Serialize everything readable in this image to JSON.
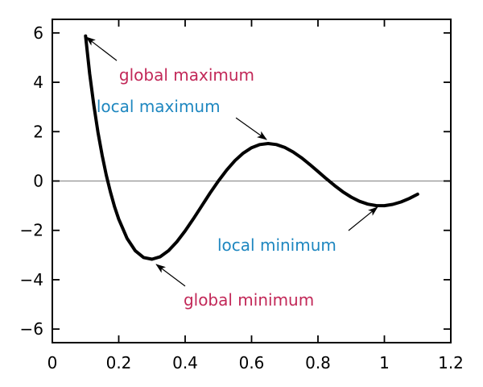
{
  "figure": {
    "background": "#ffffff",
    "axis_color": "#000000",
    "curve_color": "#000000",
    "zero_line_color": "#7f7f7f",
    "max_label_color": "#c22858",
    "min_label_color": "#1e87c0"
  },
  "chart_data": {
    "type": "line",
    "title": "",
    "xlabel": "",
    "ylabel": "",
    "xlim": [
      0,
      1.2
    ],
    "ylim": [
      -6.55,
      6.55
    ],
    "x_ticks": [
      0,
      0.2,
      0.4,
      0.6,
      0.8,
      1,
      1.2
    ],
    "x_tick_labels": [
      "0",
      "0.2",
      "0.4",
      "0.6",
      "0.8",
      "1",
      "1.2"
    ],
    "y_ticks": [
      -6,
      -4,
      -2,
      0,
      2,
      4,
      6
    ],
    "y_tick_labels": [
      "−6",
      "−4",
      "−2",
      "0",
      "2",
      "4",
      "6"
    ],
    "grid": false,
    "zero_line": true,
    "series": [
      {
        "color": "#000000",
        "x": [
          0.1,
          0.1125,
          0.125,
          0.1375,
          0.15,
          0.1625,
          0.175,
          0.1875,
          0.2,
          0.225,
          0.25,
          0.275,
          0.3,
          0.325,
          0.35,
          0.375,
          0.4,
          0.425,
          0.45,
          0.475,
          0.5,
          0.525,
          0.55,
          0.575,
          0.6,
          0.625,
          0.65,
          0.675,
          0.7,
          0.725,
          0.75,
          0.775,
          0.8,
          0.825,
          0.85,
          0.875,
          0.9,
          0.925,
          0.95,
          0.975,
          1.0,
          1.025,
          1.05,
          1.075,
          1.1
        ],
        "y": [
          5.8779,
          4.3433,
          3.0615,
          1.9741,
          1.0429,
          0.2416,
          -0.4483,
          -1.0405,
          -1.5451,
          -2.3222,
          -2.8284,
          -3.1005,
          -3.1702,
          -3.0674,
          -2.822,
          -2.4637,
          -2.0225,
          -1.528,
          -1.0089,
          -0.4915,
          0.0,
          0.4447,
          0.8254,
          1.1295,
          1.3484,
          1.4782,
          1.5195,
          1.4769,
          1.3587,
          1.1761,
          0.9428,
          0.6742,
          0.3863,
          0.0951,
          -0.184,
          -0.4374,
          -0.6531,
          -0.8221,
          -0.9379,
          -0.9973,
          -1.0,
          -0.9487,
          -0.8486,
          -0.7074,
          -0.5344
        ]
      }
    ],
    "key_points": {
      "global_maximum": [
        0.1,
        5.88
      ],
      "global_minimum": [
        0.3,
        -3.17
      ],
      "local_maximum": [
        0.65,
        1.52
      ],
      "local_minimum": [
        0.98,
        -1.0
      ]
    },
    "annotations": [
      {
        "label": "global maximum",
        "color": "#c22858",
        "text_pos": [
          0.201,
          4.07
        ],
        "arrow_from": [
          0.194,
          4.88
        ],
        "arrow_to": [
          0.102,
          5.83
        ]
      },
      {
        "label": "local maximum",
        "color": "#1e87c0",
        "text_pos": [
          0.133,
          2.79
        ],
        "arrow_from": [
          0.553,
          2.56
        ],
        "arrow_to": [
          0.645,
          1.68
        ]
      },
      {
        "label": "local minimum",
        "color": "#1e87c0",
        "text_pos": [
          0.497,
          -2.83
        ],
        "arrow_from": [
          0.892,
          -2.01
        ],
        "arrow_to": [
          0.979,
          -1.06
        ]
      },
      {
        "label": "global minimum",
        "color": "#c22858",
        "text_pos": [
          0.395,
          -5.05
        ],
        "arrow_from": [
          0.4,
          -4.26
        ],
        "arrow_to": [
          0.313,
          -3.38
        ]
      }
    ]
  }
}
